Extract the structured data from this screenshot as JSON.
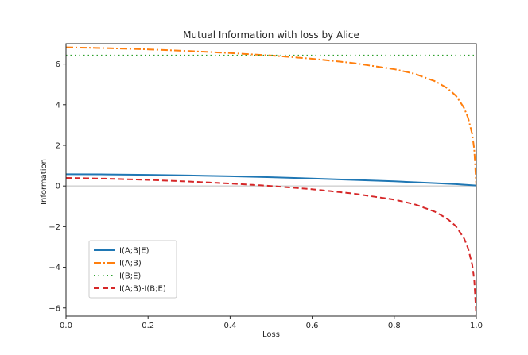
{
  "chart_data": {
    "type": "line",
    "title": "Mutual Information with loss by Alice",
    "xlabel": "Loss",
    "ylabel": "Information",
    "xlim": [
      0,
      1
    ],
    "ylim": [
      -6.4,
      7.0
    ],
    "xticks": [
      0.0,
      0.2,
      0.4,
      0.6,
      0.8,
      1.0
    ],
    "xtick_labels": [
      "0.0",
      "0.2",
      "0.4",
      "0.6",
      "0.8",
      "1.0"
    ],
    "yticks": [
      -6,
      -4,
      -2,
      0,
      2,
      4,
      6
    ],
    "ytick_labels": [
      "−6",
      "−4",
      "−2",
      "0",
      "2",
      "4",
      "6"
    ],
    "legend_position": "lower-left",
    "grid": false,
    "reference_line": {
      "y": 0,
      "color": "#bdbdbd"
    },
    "series": [
      {
        "name": "I(A;B|E)",
        "color": "#1f77b4",
        "style": "solid",
        "x": [
          0,
          0.1,
          0.2,
          0.3,
          0.4,
          0.5,
          0.6,
          0.7,
          0.8,
          0.9,
          0.95,
          1.0
        ],
        "y": [
          0.58,
          0.57,
          0.55,
          0.52,
          0.48,
          0.43,
          0.37,
          0.3,
          0.23,
          0.14,
          0.09,
          0.02
        ]
      },
      {
        "name": "I(A;B)",
        "color": "#ff7f0e",
        "style": "dashdot",
        "x": [
          0,
          0.1,
          0.2,
          0.3,
          0.4,
          0.5,
          0.6,
          0.7,
          0.8,
          0.85,
          0.9,
          0.93,
          0.95,
          0.97,
          0.98,
          0.99,
          0.995,
          1.0
        ],
        "y": [
          6.82,
          6.78,
          6.72,
          6.64,
          6.54,
          6.42,
          6.26,
          6.05,
          5.75,
          5.52,
          5.15,
          4.8,
          4.45,
          3.85,
          3.35,
          2.55,
          1.8,
          0.0
        ],
        "curve_samples": 120
      },
      {
        "name": "I(B;E)",
        "color": "#2ca02c",
        "style": "dotted",
        "x": [
          0,
          1
        ],
        "y": [
          6.42,
          6.42
        ]
      },
      {
        "name": "I(A;B)-I(B;E)",
        "color": "#d62728",
        "style": "dashed",
        "x": [
          0,
          0.1,
          0.2,
          0.3,
          0.4,
          0.5,
          0.6,
          0.7,
          0.8,
          0.85,
          0.9,
          0.93,
          0.95,
          0.97,
          0.98,
          0.99,
          0.995,
          1.0
        ],
        "y": [
          0.4,
          0.36,
          0.3,
          0.22,
          0.12,
          0.0,
          -0.16,
          -0.37,
          -0.67,
          -0.9,
          -1.27,
          -1.62,
          -1.97,
          -2.57,
          -3.07,
          -3.87,
          -4.62,
          -6.42
        ],
        "curve_samples": 120
      }
    ]
  }
}
